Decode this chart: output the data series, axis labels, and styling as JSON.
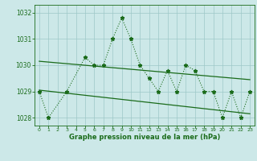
{
  "x": [
    0,
    1,
    2,
    3,
    4,
    5,
    6,
    7,
    8,
    9,
    10,
    11,
    12,
    13,
    14,
    15,
    16,
    17,
    18,
    19,
    20,
    21,
    22,
    23
  ],
  "y_data": [
    1029.0,
    1028.0,
    null,
    1029.0,
    null,
    1030.3,
    1030.0,
    1030.0,
    1031.0,
    1031.8,
    1031.0,
    1030.0,
    1029.5,
    1029.0,
    1029.8,
    1029.0,
    1030.0,
    1029.8,
    1029.0,
    1029.0,
    1028.0,
    1029.0,
    1028.0,
    1029.0
  ],
  "trend1_x": [
    0,
    23
  ],
  "trend1_y": [
    1030.15,
    1029.45
  ],
  "trend2_x": [
    0,
    23
  ],
  "trend2_y": [
    1029.05,
    1028.15
  ],
  "line_color": "#1a6b1a",
  "bg_color": "#cce8e8",
  "grid_color": "#9ec8c8",
  "xlabel": "Graphe pression niveau de la mer (hPa)",
  "ylim": [
    1027.7,
    1032.3
  ],
  "yticks": [
    1028,
    1029,
    1030,
    1031,
    1032
  ],
  "xticks": [
    0,
    1,
    2,
    3,
    4,
    5,
    6,
    7,
    8,
    9,
    10,
    11,
    12,
    13,
    14,
    15,
    16,
    17,
    18,
    19,
    20,
    21,
    22,
    23
  ]
}
